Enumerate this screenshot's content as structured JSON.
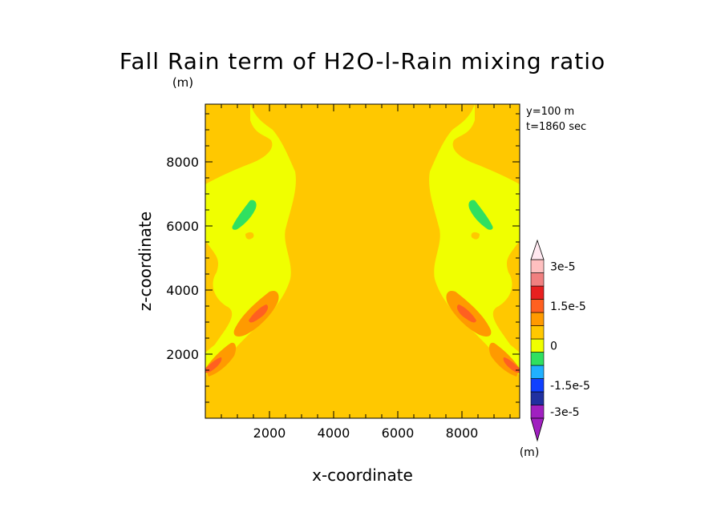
{
  "chart_data": {
    "type": "heatmap",
    "title": "Fall Rain term of H2O-l-Rain mixing ratio",
    "title_unit": "(m)",
    "xlabel": "x-coordinate",
    "ylabel": "z-coordinate",
    "xlim": [
      0,
      9800
    ],
    "ylim": [
      0,
      9800
    ],
    "x_ticks": [
      2000,
      4000,
      6000,
      8000
    ],
    "y_ticks": [
      2000,
      4000,
      6000,
      8000
    ],
    "x_tick_labels": [
      "2000",
      "4000",
      "6000",
      "8000"
    ],
    "y_tick_labels": [
      "2000",
      "4000",
      "6000",
      "8000"
    ],
    "annotations": [
      "y=100 m",
      "t=1860 sec"
    ],
    "colorbar": {
      "unit": "(m)",
      "tick_labels": [
        "3e-5",
        "1.5e-5",
        "0",
        "-1.5e-5",
        "-3e-5"
      ],
      "tick_values": [
        3e-05,
        1.5e-05,
        0,
        -1.5e-05,
        -3e-05
      ],
      "levels": [
        -3e-05,
        -2.5e-05,
        -2e-05,
        -1.5e-05,
        -1e-05,
        -5e-06,
        0,
        5e-06,
        1e-05,
        1.5e-05,
        2e-05,
        2.5e-05,
        3e-05
      ],
      "colors_bottom_to_top": [
        "#a020c0",
        "#2030a0",
        "#1040ff",
        "#20b0ff",
        "#30e060",
        "#f0ff00",
        "#ffc800",
        "#ff9a00",
        "#ff6020",
        "#e82020",
        "#f08080",
        "#ffc0c0"
      ],
      "extend": "both"
    },
    "fields": {
      "background": {
        "color": "#f0ff00",
        "value_range": [
          -5e-06,
          0
        ]
      },
      "core": {
        "color": "#ffc800",
        "value_range": [
          0,
          5e-06
        ]
      },
      "positive_regions": {
        "colors": [
          "#ff9a00",
          "#ff6020"
        ],
        "value_range": [
          5e-06,
          1.5e-05
        ]
      },
      "negative_regions": {
        "color": "#30e060",
        "value_range": [
          -1e-05,
          -5e-06
        ]
      }
    },
    "grid": false,
    "legend": "colorbar right"
  }
}
